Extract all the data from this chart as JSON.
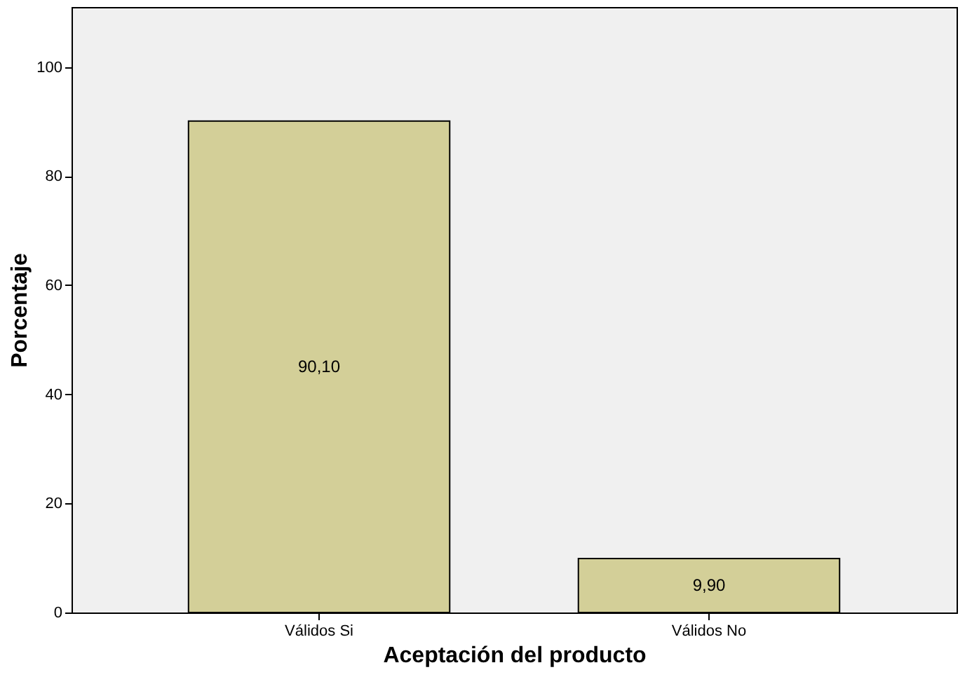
{
  "chart_data": {
    "type": "bar",
    "categories": [
      "Válidos Si",
      "Válidos No"
    ],
    "values": [
      90.1,
      9.9
    ],
    "value_labels": [
      "90,10",
      "9,90"
    ],
    "color": "#d3cf98",
    "xlabel": "Aceptación del producto",
    "ylabel": "Porcentaje",
    "ylim": [
      0,
      111
    ],
    "yticks": [
      0,
      20,
      40,
      60,
      80,
      100
    ],
    "grid": false
  }
}
